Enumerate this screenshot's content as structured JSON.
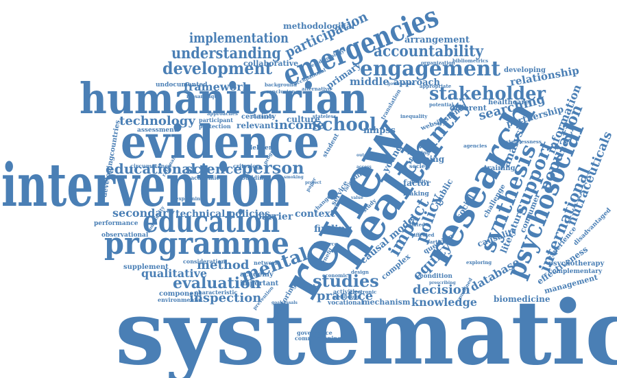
{
  "color": "#4a7fb5",
  "words": {
    "systematic": "systematic",
    "intervention": "intervention",
    "review": "review",
    "health": "health",
    "research": "research",
    "humanitarian": "humanitarian",
    "evidence": "evidence",
    "programme": "programme",
    "education": "education",
    "emergencies": "emergencies",
    "psychosocial": "psychosocial",
    "country": "country",
    "synthesis": "synthesis",
    "engagement": "engagement",
    "stakeholder": "stakeholder",
    "development": "development",
    "understanding": "understanding",
    "implementation": "implementation",
    "accountability": "accountability",
    "participation": "participation",
    "school": "school",
    "income": "income",
    "technology": "technology",
    "person": "person",
    "educational": "educational",
    "science": "science",
    "evaluation": "evaluation",
    "studies": "studies",
    "practice": "practice",
    "mental": "mental",
    "inspection": "inspection",
    "method": "method",
    "secondary": "secondary",
    "qualitative": "qualitative",
    "impact": "impact",
    "policy": "policy",
    "equity": "equity",
    "decision": "decision",
    "knowledge": "knowledge",
    "database": "database",
    "support": "support",
    "population": "population",
    "international": "international",
    "nutraceuticals": "nutraceuticals",
    "searching": "searching",
    "analysis": "analysis",
    "relationship": "relationship",
    "partnership": "partnership",
    "information": "information",
    "framework": "framework",
    "collaborative": "collaborative",
    "methodological": "methodological",
    "arrangement": "arrangement",
    "approach": "approach",
    "middle": "middle",
    "primary": "primary",
    "culture": "culture",
    "relevant": "relevant",
    "certainty": "certainty",
    "technical policies": "technical policies",
    "barrier": "barrier",
    "context": "context",
    "finding": "finding",
    "causal model": "causal model",
    "mhpss": "mhpss",
    "young": "young",
    "scoping": "scoping",
    "factor": "factor",
    "public": "public",
    "social": "social",
    "causality": "causality",
    "literature": "literature",
    "consumer": "consumer",
    "effectiveness": "effectiveness",
    "management": "management",
    "biomedicine": "biomedicine",
    "psychotherapy": "psychotherapy",
    "complementary": "complementary",
    "experience": "experience",
    "disadvantaged": "disadvantaged",
    "challenge": "challenge",
    "training": "training",
    "healthcare": "healthcare",
    "developing": "developing",
    "developingcountries": "developingcountries",
    "undocumented": "undocumented",
    "assessment": "assessment",
    "participant": "participant",
    "protection": "protection",
    "circumstance": "circumstance",
    "academic": "academic",
    "building": "building",
    "criterion": "criterion",
    "delivery": "delivery",
    "performance": "performance",
    "observational": "observational",
    "supplement": "supplement",
    "consideration": "consideration",
    "component": "component",
    "environmental": "environmental",
    "characteristic": "characteristic",
    "academy": "academy",
    "important": "important",
    "monitoring": "monitoring",
    "governance": "governance",
    "commissioning": "commissioning",
    "activities": "activities",
    "wellbeing": "wellbeing",
    "vocational": "vocational",
    "mechanism": "mechanism",
    "different": "different",
    "system": "system",
    "condition": "condition",
    "complex": "complex",
    "network": "network",
    "electronic": "electronic",
    "economic": "economic",
    "question": "question",
    "making": "making",
    "society": "society",
    "child": "child",
    "service": "service",
    "related": "related",
    "particular": "particular",
    "affected": "affected",
    "exploring": "exploring",
    "learning": "learning",
    "quality": "quality",
    "design": "design",
    "agencies": "agencies",
    "website": "website",
    "student": "student",
    "epidemiology": "epidemiology",
    "occupational": "occupational",
    "alternative": "alternative",
    "background": "background",
    "conclusion": "conclusion",
    "organization": "organization",
    "bibliometrics": "bibliometrics",
    "appropriate": "appropriate",
    "government": "government",
    "translation": "translation",
    "inequality": "inequality",
    "potential": "potential",
    "statelessness": "statelessness",
    "resource": "resource",
    "beneficiaries": "beneficiaries",
    "benefit": "benefit",
    "combined": "combined",
    "prescribing": "prescribing",
    "provision": "provision",
    "geometric": "geometric",
    "approaches": "approaches",
    "mosambique": "mosambique",
    "inclusion": "inclusion",
    "stateless": "stateless",
    "explaining": "explaining",
    "prevention": "prevention",
    "goalsessals": "goalsessals",
    "rationalism": "rationalism",
    "reduction": "reduction",
    "progress": "progress",
    "community": "community",
    "country2": "country",
    "change": "change",
    "study": "study",
    "paper": "paper",
    "project": "project",
    "access": "access",
    "value": "value",
    "future": "future",
    "smoking": "smoking",
    "outcome": "outcome"
  }
}
